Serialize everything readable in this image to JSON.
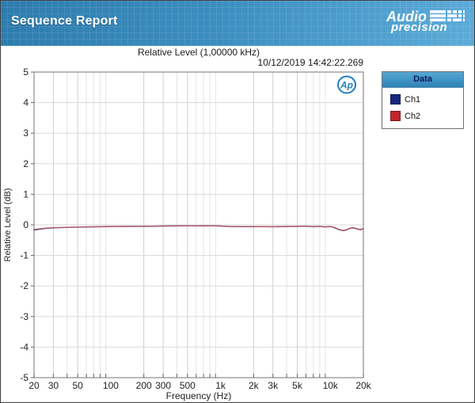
{
  "header": {
    "title": "Sequence Report",
    "logo": {
      "line1": "Audio",
      "line2": "precision"
    }
  },
  "report": {
    "title": "Relative Level (1,00000 kHz)",
    "timestamp": "10/12/2019 14:42:22.269"
  },
  "legend": {
    "title": "Data",
    "items": [
      {
        "label": "Ch1",
        "color": "#16277e"
      },
      {
        "label": "Ch2",
        "color": "#c1272d"
      }
    ]
  },
  "chart_data": {
    "type": "line",
    "title": "Relative Level (1,00000 kHz)",
    "xlabel": "Frequency (Hz)",
    "ylabel": "Relative Level (dB)",
    "x_scale": "log",
    "xlim": [
      20,
      20000
    ],
    "ylim": [
      -5,
      5
    ],
    "y_tick_step": 1,
    "grid": true,
    "legend_position": "outside-right",
    "watermark": "Ap",
    "watermark_color": "#1f7dbd",
    "x_ticks": [
      {
        "value": 20,
        "label": "20"
      },
      {
        "value": 30,
        "label": "30"
      },
      {
        "value": 50,
        "label": "50"
      },
      {
        "value": 100,
        "label": "100"
      },
      {
        "value": 200,
        "label": "200"
      },
      {
        "value": 300,
        "label": "300"
      },
      {
        "value": 500,
        "label": "500"
      },
      {
        "value": 1000,
        "label": "1k"
      },
      {
        "value": 2000,
        "label": "2k"
      },
      {
        "value": 3000,
        "label": "3k"
      },
      {
        "value": 5000,
        "label": "5k"
      },
      {
        "value": 10000,
        "label": "10k"
      },
      {
        "value": 20000,
        "label": "20k"
      }
    ],
    "series": [
      {
        "name": "Ch1",
        "line_color": "#3a4a9f",
        "points": [
          [
            20,
            -0.17
          ],
          [
            25,
            -0.12
          ],
          [
            30,
            -0.1
          ],
          [
            40,
            -0.085
          ],
          [
            50,
            -0.075
          ],
          [
            60,
            -0.07
          ],
          [
            80,
            -0.065
          ],
          [
            100,
            -0.055
          ],
          [
            150,
            -0.05
          ],
          [
            200,
            -0.05
          ],
          [
            300,
            -0.04
          ],
          [
            400,
            -0.035
          ],
          [
            500,
            -0.03
          ],
          [
            700,
            -0.035
          ],
          [
            900,
            -0.03
          ],
          [
            1000,
            -0.04
          ],
          [
            1200,
            -0.055
          ],
          [
            1500,
            -0.06
          ],
          [
            2000,
            -0.06
          ],
          [
            2500,
            -0.06
          ],
          [
            3000,
            -0.065
          ],
          [
            4000,
            -0.055
          ],
          [
            5000,
            -0.05
          ],
          [
            6000,
            -0.045
          ],
          [
            7000,
            -0.06
          ],
          [
            8000,
            -0.05
          ],
          [
            9000,
            -0.07
          ],
          [
            10000,
            -0.055
          ],
          [
            11000,
            -0.1
          ],
          [
            12000,
            -0.16
          ],
          [
            13000,
            -0.19
          ],
          [
            14000,
            -0.17
          ],
          [
            15000,
            -0.12
          ],
          [
            16000,
            -0.1
          ],
          [
            17000,
            -0.12
          ],
          [
            18000,
            -0.15
          ],
          [
            19000,
            -0.16
          ],
          [
            20000,
            -0.13
          ]
        ]
      },
      {
        "name": "Ch2",
        "line_color": "#b25560",
        "points": [
          [
            20,
            -0.15
          ],
          [
            25,
            -0.11
          ],
          [
            30,
            -0.09
          ],
          [
            40,
            -0.08
          ],
          [
            50,
            -0.07
          ],
          [
            60,
            -0.065
          ],
          [
            80,
            -0.06
          ],
          [
            100,
            -0.05
          ],
          [
            150,
            -0.05
          ],
          [
            200,
            -0.045
          ],
          [
            300,
            -0.035
          ],
          [
            400,
            -0.03
          ],
          [
            500,
            -0.03
          ],
          [
            700,
            -0.03
          ],
          [
            900,
            -0.03
          ],
          [
            1000,
            -0.035
          ],
          [
            1200,
            -0.05
          ],
          [
            1500,
            -0.055
          ],
          [
            2000,
            -0.055
          ],
          [
            2500,
            -0.06
          ],
          [
            3000,
            -0.06
          ],
          [
            4000,
            -0.05
          ],
          [
            5000,
            -0.05
          ],
          [
            6000,
            -0.04
          ],
          [
            7000,
            -0.055
          ],
          [
            8000,
            -0.045
          ],
          [
            9000,
            -0.065
          ],
          [
            10000,
            -0.05
          ],
          [
            11000,
            -0.09
          ],
          [
            12000,
            -0.15
          ],
          [
            13000,
            -0.18
          ],
          [
            14000,
            -0.16
          ],
          [
            15000,
            -0.11
          ],
          [
            16000,
            -0.09
          ],
          [
            17000,
            -0.11
          ],
          [
            18000,
            -0.14
          ],
          [
            19000,
            -0.15
          ],
          [
            20000,
            -0.12
          ]
        ]
      }
    ],
    "style": {
      "grid_minor_color": "#e4e4e4",
      "grid_major_color": "#cfcfcf",
      "grid_h_color": "#dadada",
      "frame_color": "#8c8c8c",
      "tick_color": "#666666",
      "label_color": "#222222"
    }
  }
}
